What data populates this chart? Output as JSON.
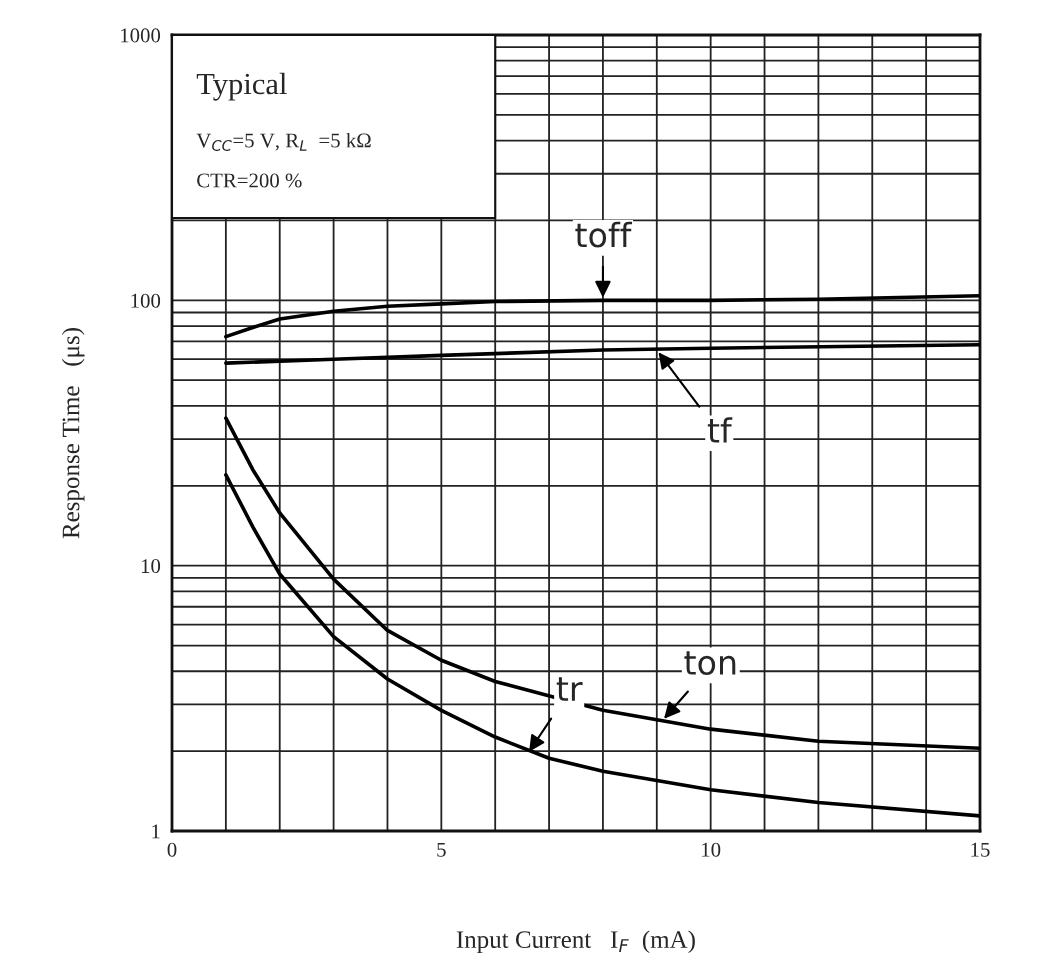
{
  "chart_data": {
    "type": "line",
    "xlabel": "Input Current   I$_{F}$  (mA)",
    "ylabel": "Response Time   (μs)",
    "log": "y",
    "xlim": [
      0,
      15
    ],
    "ylim": [
      1,
      1000
    ],
    "xticks": [
      0,
      5,
      10,
      15
    ],
    "yticks": [
      1,
      10,
      100,
      1000
    ],
    "grid": true,
    "marker": "none",
    "line_style": "solid",
    "series": [
      {
        "color": "#000000",
        "x": [
          1,
          1.5,
          2,
          3,
          4,
          5,
          6,
          8,
          10,
          12,
          15
        ],
        "values": [
          73,
          79,
          85,
          91,
          95,
          97,
          99,
          100,
          100,
          101,
          104
        ]
      },
      {
        "color": "#000000",
        "x": [
          1,
          3,
          5,
          8,
          10,
          15
        ],
        "values": [
          58,
          60,
          62,
          65,
          66,
          68
        ]
      },
      {
        "color": "#000000",
        "x": [
          1,
          1.5,
          2,
          3,
          4,
          5,
          6,
          8,
          10,
          12,
          15
        ],
        "values": [
          36,
          23,
          15.8,
          8.9,
          5.7,
          4.4,
          3.66,
          2.85,
          2.42,
          2.18,
          2.05
        ]
      },
      {
        "color": "#000000",
        "x": [
          1,
          1.5,
          2,
          3,
          4,
          5,
          6,
          7,
          8,
          10,
          12,
          15
        ],
        "values": [
          22,
          14,
          9.3,
          5.4,
          3.74,
          2.85,
          2.26,
          1.88,
          1.68,
          1.43,
          1.28,
          1.14
        ]
      }
    ],
    "annotations": [
      {
        "text": "toff",
        "x": 8,
        "y": 100
      },
      {
        "text": "tf",
        "x": 9,
        "y": 65
      },
      {
        "text": "tr",
        "x": 6.6,
        "y": 1.95
      },
      {
        "text": "ton",
        "x": 9.1,
        "y": 2.6
      },
      "Typical",
      "V$_{CC}$=5 V, R$_{L}$  =5 kΩ",
      "CTR=200 %"
    ]
  }
}
